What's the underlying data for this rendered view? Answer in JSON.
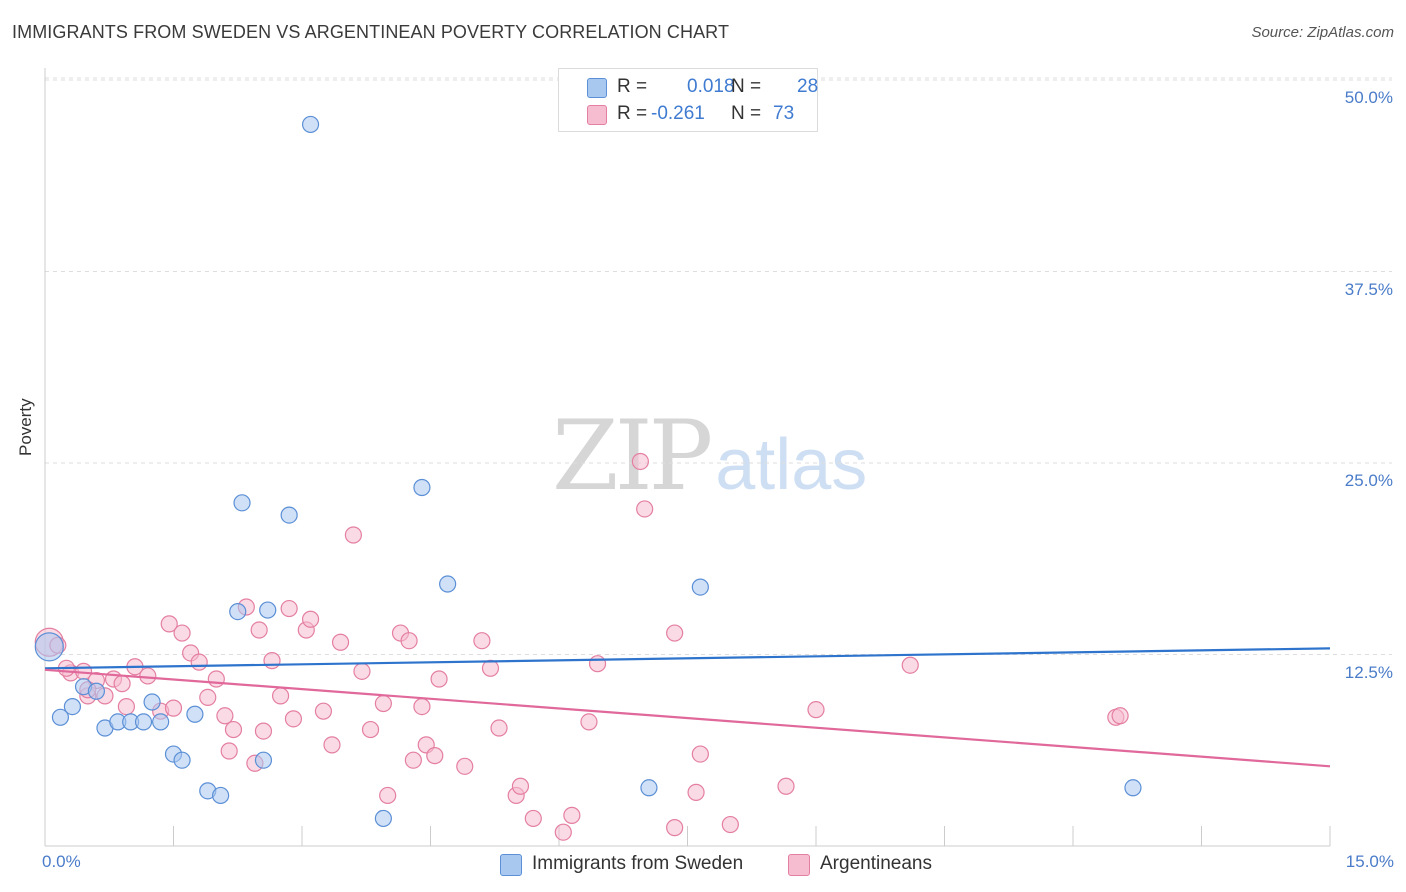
{
  "header": {
    "title": "IMMIGRANTS FROM SWEDEN VS ARGENTINEAN POVERTY CORRELATION CHART",
    "source": "Source: ZipAtlas.com"
  },
  "legend": {
    "series1": {
      "r_label": "R =",
      "r_value": "0.018",
      "n_label": "N =",
      "n_value": "28"
    },
    "series2": {
      "r_label": "R =",
      "r_value": "-0.261",
      "n_label": "N =",
      "n_value": "73"
    }
  },
  "bottom_legend": {
    "series1": "Immigrants from Sweden",
    "series2": "Argentineans"
  },
  "watermark": {
    "zip": "ZIP",
    "atlas": "atlas"
  },
  "colors": {
    "sweden_fill": "#a9c8f0",
    "sweden_stroke": "#5b8fd6",
    "sweden_line": "#2e74cc",
    "arg_fill": "#f6bcd0",
    "arg_stroke": "#e47fa1",
    "arg_line": "#e0689a",
    "tick_text": "#4a7cc9",
    "grid": "#dddddd"
  },
  "chart_data": {
    "type": "scatter",
    "title": "IMMIGRANTS FROM SWEDEN VS ARGENTINEAN POVERTY CORRELATION CHART",
    "xlabel": "",
    "ylabel": "Poverty",
    "xlim": [
      0,
      15
    ],
    "ylim": [
      0,
      50
    ],
    "x_ticks": [
      0,
      15
    ],
    "x_tick_labels": [
      "0.0%",
      "15.0%"
    ],
    "y_ticks": [
      12.5,
      25,
      37.5,
      50
    ],
    "y_tick_labels": [
      "12.5%",
      "25.0%",
      "37.5%",
      "50.0%"
    ],
    "grid": true,
    "legend_position": "top-center",
    "series": [
      {
        "name": "Immigrants from Sweden",
        "r": 0.018,
        "n": 28,
        "trend": [
          [
            0,
            11.6
          ],
          [
            15,
            12.9
          ]
        ],
        "points": [
          [
            0.05,
            13.0
          ],
          [
            0.18,
            8.4
          ],
          [
            0.32,
            9.1
          ],
          [
            0.45,
            10.4
          ],
          [
            0.6,
            10.1
          ],
          [
            0.7,
            7.7
          ],
          [
            0.85,
            8.1
          ],
          [
            1.0,
            8.1
          ],
          [
            1.15,
            8.1
          ],
          [
            1.25,
            9.4
          ],
          [
            1.35,
            8.1
          ],
          [
            1.5,
            6.0
          ],
          [
            1.6,
            5.6
          ],
          [
            1.75,
            8.6
          ],
          [
            1.9,
            3.6
          ],
          [
            2.05,
            3.3
          ],
          [
            2.25,
            15.3
          ],
          [
            2.3,
            22.4
          ],
          [
            2.55,
            5.6
          ],
          [
            2.6,
            15.4
          ],
          [
            2.85,
            21.6
          ],
          [
            3.1,
            47.1
          ],
          [
            3.95,
            1.8
          ],
          [
            4.4,
            23.4
          ],
          [
            4.7,
            17.1
          ],
          [
            7.05,
            3.8
          ],
          [
            7.65,
            16.9
          ],
          [
            12.7,
            3.8
          ]
        ]
      },
      {
        "name": "Argentineans",
        "r": -0.261,
        "n": 73,
        "trend": [
          [
            0,
            11.5
          ],
          [
            15,
            5.2
          ]
        ],
        "points": [
          [
            0.05,
            13.3
          ],
          [
            0.15,
            13.1
          ],
          [
            0.3,
            11.3
          ],
          [
            0.45,
            11.4
          ],
          [
            0.5,
            9.8
          ],
          [
            0.6,
            10.8
          ],
          [
            0.7,
            9.8
          ],
          [
            0.8,
            10.9
          ],
          [
            0.9,
            10.6
          ],
          [
            0.95,
            9.1
          ],
          [
            1.05,
            11.7
          ],
          [
            1.2,
            11.1
          ],
          [
            1.35,
            8.8
          ],
          [
            1.45,
            14.5
          ],
          [
            1.5,
            9.0
          ],
          [
            1.6,
            13.9
          ],
          [
            1.7,
            12.6
          ],
          [
            1.8,
            12.0
          ],
          [
            1.9,
            9.7
          ],
          [
            2.0,
            10.9
          ],
          [
            2.1,
            8.5
          ],
          [
            2.2,
            7.6
          ],
          [
            2.35,
            15.6
          ],
          [
            2.45,
            5.4
          ],
          [
            2.5,
            14.1
          ],
          [
            2.55,
            7.5
          ],
          [
            2.65,
            12.1
          ],
          [
            2.75,
            9.8
          ],
          [
            2.85,
            15.5
          ],
          [
            2.9,
            8.3
          ],
          [
            3.05,
            14.1
          ],
          [
            3.1,
            14.8
          ],
          [
            3.25,
            8.8
          ],
          [
            3.35,
            6.6
          ],
          [
            3.45,
            13.3
          ],
          [
            3.6,
            20.3
          ],
          [
            3.7,
            11.4
          ],
          [
            3.8,
            7.6
          ],
          [
            3.95,
            9.3
          ],
          [
            4.0,
            3.3
          ],
          [
            4.15,
            13.9
          ],
          [
            4.25,
            13.4
          ],
          [
            4.3,
            5.6
          ],
          [
            4.4,
            9.1
          ],
          [
            4.45,
            6.6
          ],
          [
            4.55,
            5.9
          ],
          [
            4.6,
            10.9
          ],
          [
            4.9,
            5.2
          ],
          [
            5.1,
            13.4
          ],
          [
            5.2,
            11.6
          ],
          [
            5.3,
            7.7
          ],
          [
            5.5,
            3.3
          ],
          [
            5.55,
            3.9
          ],
          [
            5.7,
            1.8
          ],
          [
            6.05,
            0.9
          ],
          [
            6.15,
            2.0
          ],
          [
            6.35,
            8.1
          ],
          [
            6.45,
            11.9
          ],
          [
            6.95,
            25.1
          ],
          [
            7.0,
            22.0
          ],
          [
            7.35,
            13.9
          ],
          [
            7.35,
            1.2
          ],
          [
            7.6,
            3.5
          ],
          [
            7.65,
            6.0
          ],
          [
            8.0,
            1.4
          ],
          [
            8.65,
            3.9
          ],
          [
            9.0,
            8.9
          ],
          [
            10.1,
            11.8
          ],
          [
            12.5,
            8.4
          ],
          [
            12.55,
            8.5
          ],
          [
            0.5,
            10.2
          ],
          [
            0.25,
            11.6
          ],
          [
            2.15,
            6.2
          ]
        ]
      }
    ]
  }
}
